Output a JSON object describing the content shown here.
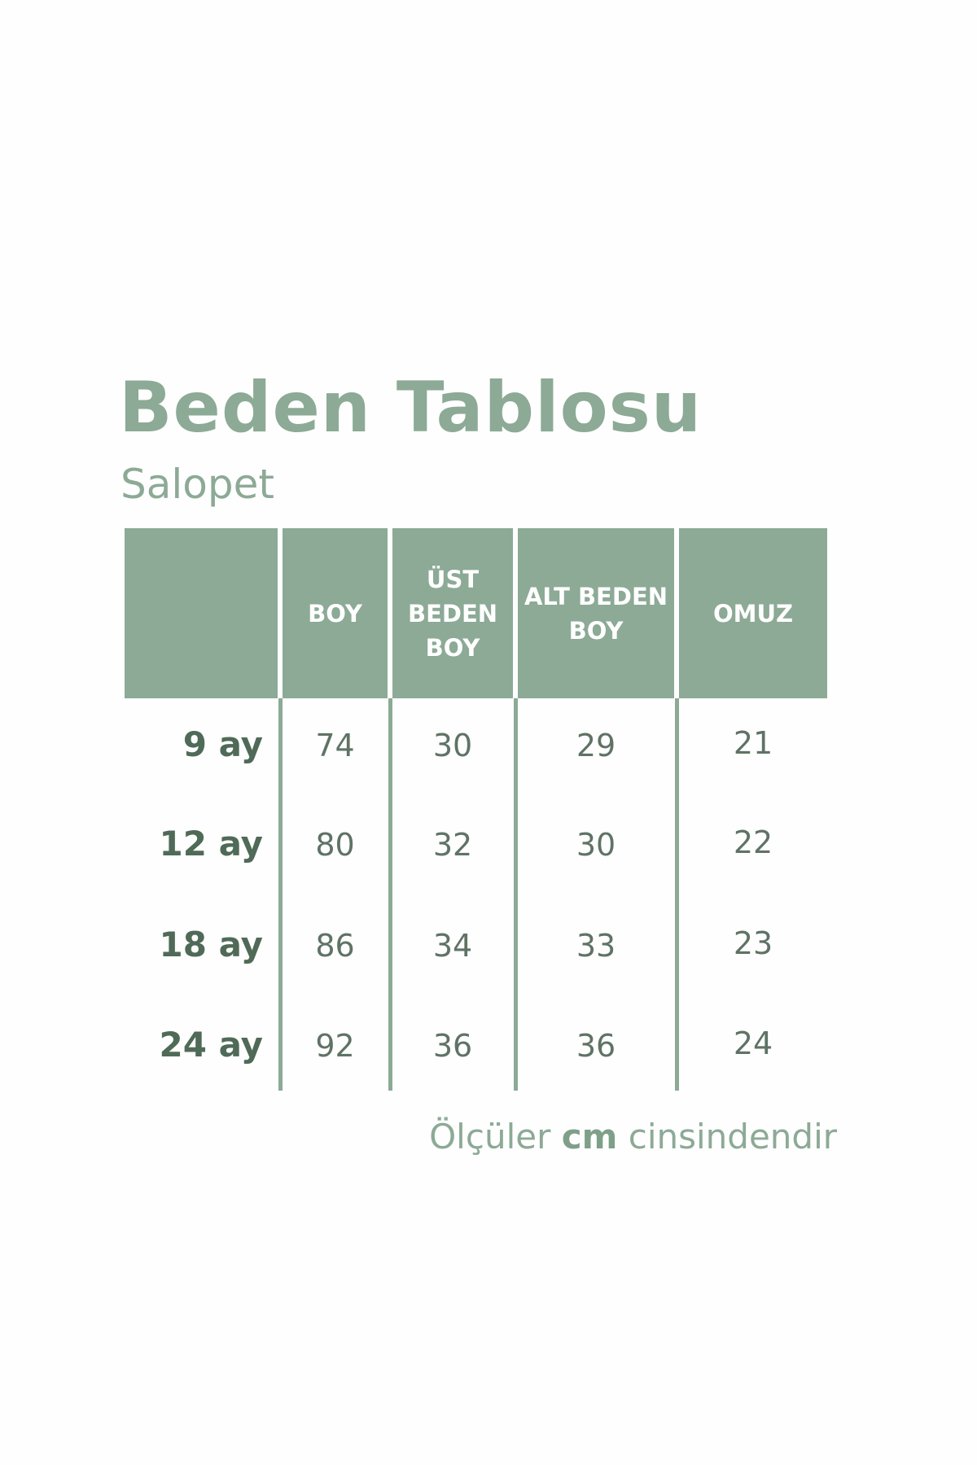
{
  "title": "Beden Tablosu",
  "subtitle": "Salopet",
  "colors": {
    "accent": "#8caa96",
    "row_label": "#506a58",
    "value": "#5f7365"
  },
  "table": {
    "headers": [
      "",
      "BOY",
      "ÜST BEDEN BOY",
      "ALT BEDEN BOY",
      "OMUZ"
    ],
    "rows": [
      {
        "label": "9 ay",
        "values": [
          "74",
          "30",
          "29",
          "21"
        ]
      },
      {
        "label": "12 ay",
        "values": [
          "80",
          "32",
          "30",
          "22"
        ]
      },
      {
        "label": "18 ay",
        "values": [
          "86",
          "34",
          "33",
          "23"
        ]
      },
      {
        "label": "24 ay",
        "values": [
          "92",
          "36",
          "36",
          "24"
        ]
      }
    ]
  },
  "footer": {
    "before": "Ölçüler",
    "bold": "cm",
    "after": "cinsindendir"
  }
}
